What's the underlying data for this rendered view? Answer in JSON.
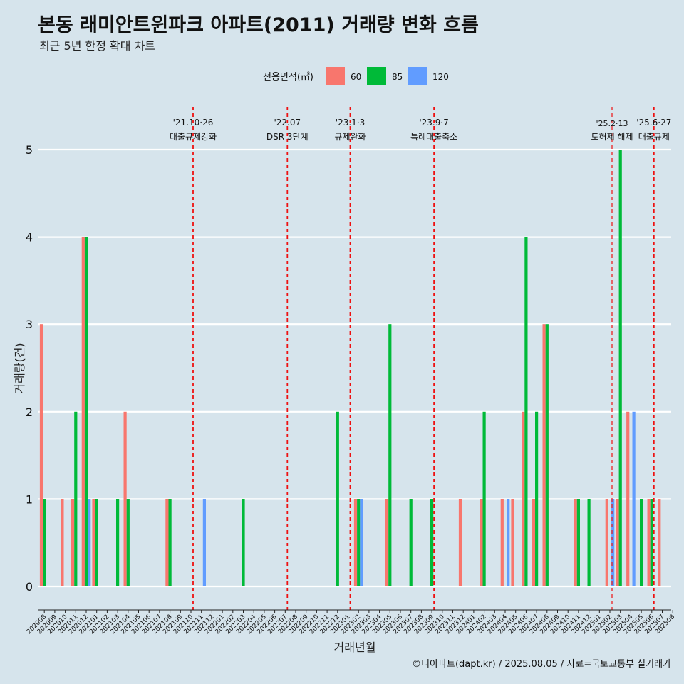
{
  "title": "본동 래미안트윈파크 아파트(2011) 거래량 변화 흐름",
  "subtitle": "최근 5년 한정 확대 차트",
  "caption": "©디아파트(dapt.kr) / 2025.08.05 / 자료=국토교통부 실거래가",
  "chart_data": {
    "type": "bar",
    "xlabel": "거래년월",
    "ylabel": "거래량(건)",
    "ylim": [
      0,
      5
    ],
    "yticks": [
      0,
      1,
      2,
      3,
      4,
      5
    ],
    "grid": true,
    "legend": {
      "title": "전용면적(㎡)",
      "placement": "top",
      "entries": [
        {
          "name": "60",
          "color": "#f8766d"
        },
        {
          "name": "85",
          "color": "#00ba38"
        },
        {
          "name": "120",
          "color": "#619cff"
        }
      ]
    },
    "categories": [
      "202008",
      "202009",
      "202010",
      "202011",
      "202012",
      "202101",
      "202102",
      "202103",
      "202104",
      "202105",
      "202106",
      "202107",
      "202108",
      "202109",
      "202110",
      "202111",
      "202112",
      "202201",
      "202202",
      "202203",
      "202204",
      "202205",
      "202206",
      "202207",
      "202208",
      "202209",
      "202210",
      "202211",
      "202212",
      "202301",
      "202302",
      "202303",
      "202304",
      "202305",
      "202306",
      "202307",
      "202308",
      "202309",
      "202310",
      "202311",
      "202312",
      "202401",
      "202402",
      "202403",
      "202404",
      "202405",
      "202406",
      "202407",
      "202408",
      "202409",
      "202410",
      "202411",
      "202412",
      "202501",
      "202502",
      "202503",
      "202504",
      "202505",
      "202506",
      "202507",
      "202508"
    ],
    "series": [
      {
        "name": "60",
        "values": [
          3,
          0,
          1,
          1,
          4,
          1,
          0,
          0,
          2,
          0,
          0,
          0,
          1,
          0,
          0,
          0,
          0,
          0,
          0,
          0,
          0,
          0,
          0,
          0,
          0,
          0,
          0,
          0,
          0,
          0,
          1,
          0,
          0,
          1,
          0,
          0,
          0,
          0,
          0,
          0,
          1,
          0,
          1,
          0,
          1,
          1,
          2,
          1,
          3,
          0,
          0,
          1,
          0,
          0,
          1,
          1,
          2,
          0,
          1,
          1,
          0
        ]
      },
      {
        "name": "85",
        "values": [
          1,
          0,
          0,
          2,
          4,
          1,
          0,
          1,
          1,
          0,
          0,
          0,
          1,
          0,
          0,
          0,
          0,
          0,
          0,
          1,
          0,
          0,
          0,
          0,
          0,
          0,
          0,
          0,
          2,
          0,
          1,
          0,
          0,
          3,
          0,
          1,
          0,
          1,
          0,
          0,
          0,
          0,
          2,
          0,
          0,
          0,
          4,
          2,
          3,
          0,
          0,
          1,
          1,
          0,
          0,
          5,
          0,
          1,
          1,
          0,
          0
        ]
      },
      {
        "name": "120",
        "values": [
          0,
          0,
          0,
          0,
          1,
          0,
          0,
          0,
          0,
          0,
          0,
          0,
          0,
          0,
          0,
          1,
          0,
          0,
          0,
          0,
          0,
          0,
          0,
          0,
          0,
          0,
          0,
          0,
          0,
          0,
          1,
          0,
          0,
          0,
          0,
          0,
          0,
          0,
          0,
          0,
          0,
          0,
          0,
          0,
          1,
          0,
          0,
          0,
          0,
          0,
          0,
          0,
          0,
          0,
          1,
          0,
          2,
          0,
          0,
          0,
          0
        ]
      }
    ],
    "annotations": [
      {
        "date": "'21.10·26",
        "label": "대출규제강화",
        "x": "202110",
        "color": "#ee1111"
      },
      {
        "date": "'22.07",
        "label": "DSR 3단계",
        "x": "202207",
        "color": "#ee1111"
      },
      {
        "date": "'23.1·3",
        "label": "규제완화",
        "x": "202301",
        "color": "#ee1111"
      },
      {
        "date": "'23.9·7",
        "label": "특례대출축소",
        "x": "202309",
        "color": "#ee1111"
      },
      {
        "date": "'25.2·13",
        "label": "토허제 해제",
        "x": "202502",
        "color": "#ee1111"
      },
      {
        "date": "'25.6·27",
        "label": "대출규제",
        "x": "202506",
        "color": "#ee1111"
      }
    ]
  }
}
